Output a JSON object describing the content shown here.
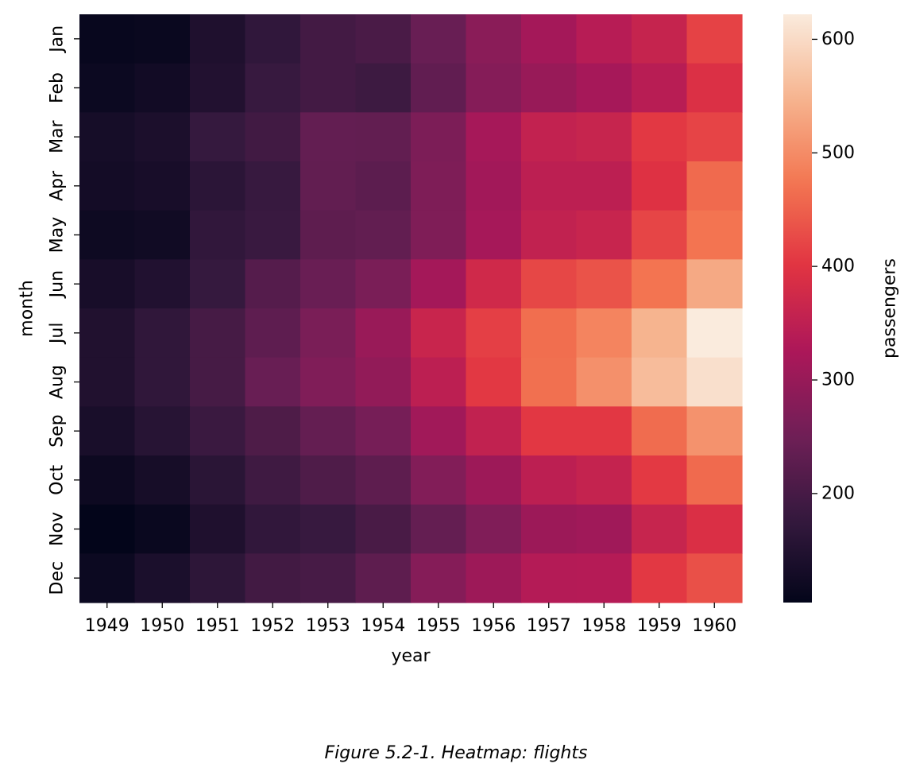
{
  "caption": "Figure 5.2-1. Heatmap: flights",
  "chart_data": {
    "type": "heatmap",
    "title": "",
    "xlabel": "year",
    "ylabel": "month",
    "colorbar_label": "passengers",
    "x": [
      "1949",
      "1950",
      "1951",
      "1952",
      "1953",
      "1954",
      "1955",
      "1956",
      "1957",
      "1958",
      "1959",
      "1960"
    ],
    "y": [
      "Jan",
      "Feb",
      "Mar",
      "Apr",
      "May",
      "Jun",
      "Jul",
      "Aug",
      "Sep",
      "Oct",
      "Nov",
      "Dec"
    ],
    "values": [
      [
        112,
        115,
        145,
        171,
        196,
        204,
        242,
        284,
        315,
        340,
        360,
        417
      ],
      [
        118,
        126,
        150,
        180,
        196,
        188,
        233,
        277,
        301,
        318,
        342,
        391
      ],
      [
        132,
        141,
        178,
        193,
        236,
        235,
        267,
        317,
        356,
        362,
        406,
        419
      ],
      [
        129,
        135,
        163,
        181,
        235,
        227,
        269,
        313,
        348,
        348,
        396,
        461
      ],
      [
        121,
        125,
        172,
        183,
        229,
        234,
        270,
        318,
        355,
        363,
        420,
        472
      ],
      [
        135,
        149,
        178,
        218,
        243,
        264,
        315,
        374,
        422,
        435,
        472,
        535
      ],
      [
        148,
        170,
        199,
        230,
        264,
        302,
        364,
        413,
        465,
        491,
        548,
        622
      ],
      [
        148,
        170,
        199,
        242,
        272,
        293,
        347,
        405,
        467,
        505,
        559,
        606
      ],
      [
        136,
        158,
        184,
        209,
        237,
        259,
        312,
        355,
        404,
        404,
        463,
        508
      ],
      [
        119,
        133,
        162,
        191,
        211,
        229,
        274,
        306,
        347,
        359,
        407,
        461
      ],
      [
        104,
        114,
        146,
        172,
        180,
        203,
        237,
        271,
        305,
        310,
        362,
        390
      ],
      [
        118,
        140,
        166,
        194,
        201,
        229,
        278,
        306,
        336,
        337,
        405,
        432
      ]
    ],
    "colorbar": {
      "min": 104,
      "max": 622,
      "ticks": [
        200,
        300,
        400,
        500,
        600
      ]
    },
    "colormap": "rocket",
    "colormap_stops": [
      "#03051a",
      "#35193e",
      "#701f57",
      "#ad1759",
      "#e13342",
      "#f37651",
      "#f6b48f",
      "#faebdd"
    ]
  }
}
